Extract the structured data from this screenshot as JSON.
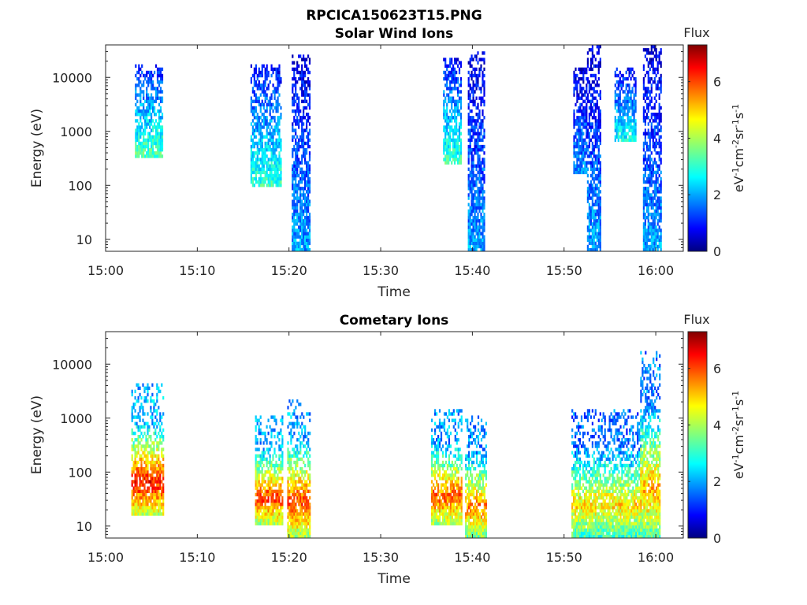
{
  "figure_title": "RPCICA150623T15.PNG",
  "colors": {
    "colormap": "jet",
    "axis": "#262626"
  },
  "chart_data": [
    {
      "type": "heatmap",
      "title": "Solar Wind Ions",
      "xlabel": "Time",
      "ylabel": "Energy (eV)",
      "x_ticks": [
        "15:00",
        "15:10",
        "15:20",
        "15:30",
        "15:40",
        "15:50",
        "16:00"
      ],
      "x_range_minutes": [
        0,
        63
      ],
      "y_scale": "log",
      "y_ticks": [
        "10",
        "100",
        "1000",
        "10000"
      ],
      "y_range": [
        6,
        40000
      ],
      "colorbar": {
        "label": "Flux",
        "units": "eV-1 cm-2 sr-1 s-1",
        "ticks": [
          "0",
          "2",
          "4",
          "6"
        ],
        "range": [
          0,
          7.3
        ]
      },
      "bursts": [
        {
          "t_start": 3.2,
          "t_end": 6.2,
          "e_min": 300,
          "e_max": 16000,
          "flux": 2.6
        },
        {
          "t_start": 15.8,
          "t_end": 19.2,
          "e_min": 90,
          "e_max": 16000,
          "flux": 2.4
        },
        {
          "t_start": 20.3,
          "t_end": 22.3,
          "e_min": 6,
          "e_max": 25000,
          "flux": 1.6
        },
        {
          "t_start": 36.8,
          "t_end": 38.8,
          "e_min": 250,
          "e_max": 22000,
          "flux": 2.4
        },
        {
          "t_start": 39.5,
          "t_end": 41.3,
          "e_min": 6,
          "e_max": 28000,
          "flux": 1.6
        },
        {
          "t_start": 51.0,
          "t_end": 52.4,
          "e_min": 150,
          "e_max": 15000,
          "flux": 1.5
        },
        {
          "t_start": 52.5,
          "t_end": 54.0,
          "e_min": 6,
          "e_max": 35000,
          "flux": 1.6
        },
        {
          "t_start": 55.5,
          "t_end": 57.8,
          "e_min": 600,
          "e_max": 15000,
          "flux": 2.2
        },
        {
          "t_start": 58.6,
          "t_end": 60.5,
          "e_min": 6,
          "e_max": 35000,
          "flux": 1.6
        }
      ]
    },
    {
      "type": "heatmap",
      "title": "Cometary Ions",
      "xlabel": "Time",
      "ylabel": "Energy (eV)",
      "x_ticks": [
        "15:00",
        "15:10",
        "15:20",
        "15:30",
        "15:40",
        "15:50",
        "16:00"
      ],
      "x_range_minutes": [
        0,
        63
      ],
      "y_scale": "log",
      "y_ticks": [
        "10",
        "100",
        "1000",
        "10000"
      ],
      "y_range": [
        6,
        40000
      ],
      "colorbar": {
        "label": "Flux",
        "units": "eV-1 cm-2 sr-1 s-1",
        "ticks": [
          "0",
          "2",
          "4",
          "6"
        ],
        "range": [
          0,
          7.3
        ]
      },
      "bursts": [
        {
          "t_start": 2.8,
          "t_end": 6.3,
          "e_min": 15,
          "e_max": 4000,
          "flux": 6.3
        },
        {
          "t_start": 16.3,
          "t_end": 19.3,
          "e_min": 10,
          "e_max": 1000,
          "flux": 6.0
        },
        {
          "t_start": 19.8,
          "t_end": 22.3,
          "e_min": 6,
          "e_max": 2200,
          "flux": 6.0
        },
        {
          "t_start": 35.5,
          "t_end": 38.8,
          "e_min": 10,
          "e_max": 1300,
          "flux": 5.8
        },
        {
          "t_start": 39.2,
          "t_end": 41.5,
          "e_min": 6,
          "e_max": 1000,
          "flux": 5.5
        },
        {
          "t_start": 50.8,
          "t_end": 58.3,
          "e_min": 6,
          "e_max": 1400,
          "flux": 4.8
        },
        {
          "t_start": 58.3,
          "t_end": 60.5,
          "e_min": 6,
          "e_max": 16000,
          "flux": 5.2
        }
      ]
    }
  ]
}
